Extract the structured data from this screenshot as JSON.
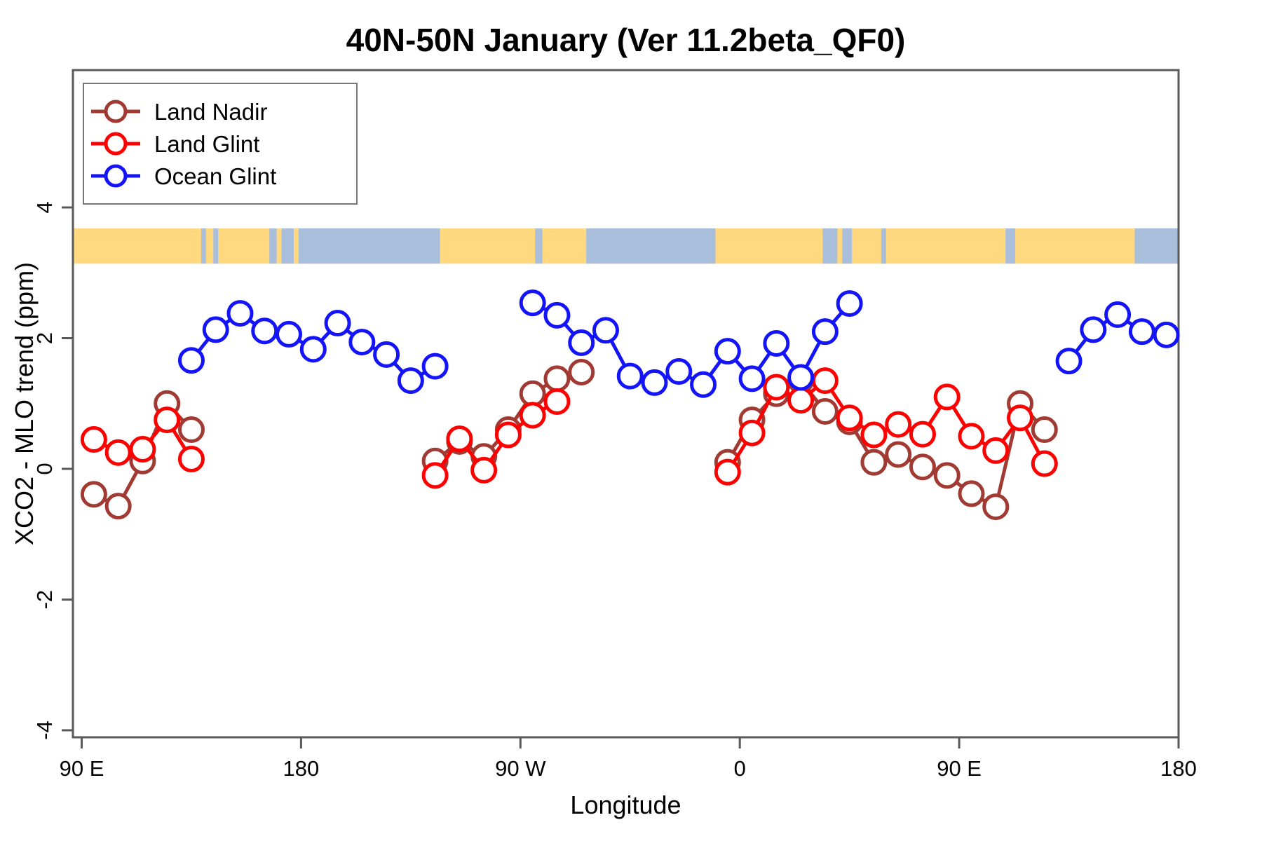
{
  "title": "40N-50N January (Ver 11.2beta_QF0)",
  "chart_data": {
    "type": "line",
    "title": "40N-50N January (Ver 11.2beta_QF0)",
    "xlabel": "Longitude",
    "ylabel": "XCO2 - MLO trend (ppm)",
    "legend_position": "top-left",
    "grid": false,
    "axis_color": "#5a5a5a",
    "text_color": "#000000",
    "xlim_wrapped_degrees": [
      86.5,
      540
    ],
    "ylim": [
      -4.1,
      6.1
    ],
    "x_ticks": [
      {
        "label": "90 E",
        "lon": 90
      },
      {
        "label": "180",
        "lon": 180
      },
      {
        "label": "90 W",
        "lon": 270
      },
      {
        "label": "0",
        "lon": 360
      },
      {
        "label": "90 E",
        "lon": 450
      },
      {
        "label": "180",
        "lon": 540
      }
    ],
    "y_ticks": [
      {
        "label": "-4",
        "value": -4
      },
      {
        "label": "-2",
        "value": -2
      },
      {
        "label": "0",
        "value": 0
      },
      {
        "label": "2",
        "value": 2
      },
      {
        "label": "4",
        "value": 4
      }
    ],
    "map_strip": {
      "description": "world coastline band 40N-50N drawn across top of plot",
      "value_top": 3.68,
      "value_bottom": 3.14,
      "land_color": "#FFD880",
      "ocean_color": "#A9BEDB",
      "ocean_segments_lon": [
        [
          139,
          141
        ],
        [
          144,
          146
        ],
        [
          167,
          170
        ],
        [
          172,
          237
        ],
        [
          276,
          279
        ],
        [
          297,
          350
        ],
        [
          394,
          400
        ],
        [
          402,
          406
        ],
        [
          418,
          420
        ],
        [
          469,
          473
        ],
        [
          522,
          540
        ]
      ],
      "land_speck_segments_lon": [
        [
          177,
          179
        ]
      ]
    },
    "series": [
      {
        "name": "Land Nadir",
        "color": "#A03A32",
        "segments": [
          [
            [
              95,
              -0.39
            ],
            [
              105,
              -0.57
            ],
            [
              115,
              0.12
            ],
            [
              125,
              1.0
            ],
            [
              135,
              0.6
            ]
          ],
          [
            [
              235,
              0.12
            ],
            [
              245,
              0.42
            ],
            [
              255,
              0.19
            ],
            [
              265,
              0.6
            ],
            [
              275,
              1.15
            ],
            [
              285,
              1.38
            ],
            [
              295,
              1.48
            ]
          ],
          [
            [
              355,
              0.1
            ],
            [
              365,
              0.75
            ],
            [
              375,
              1.15
            ],
            [
              385,
              1.35
            ],
            [
              395,
              0.88
            ],
            [
              405,
              0.72
            ],
            [
              415,
              0.1
            ],
            [
              425,
              0.22
            ],
            [
              435,
              0.03
            ],
            [
              445,
              -0.1
            ],
            [
              455,
              -0.38
            ],
            [
              465,
              -0.58
            ],
            [
              475,
              1.0
            ],
            [
              485,
              0.6
            ]
          ]
        ]
      },
      {
        "name": "Land Glint",
        "color": "#FF0000",
        "segments": [
          [
            [
              95,
              0.45
            ],
            [
              105,
              0.25
            ],
            [
              115,
              0.3
            ],
            [
              125,
              0.75
            ],
            [
              135,
              0.15
            ]
          ],
          [
            [
              235,
              -0.1
            ],
            [
              245,
              0.46
            ],
            [
              255,
              -0.02
            ],
            [
              265,
              0.52
            ],
            [
              275,
              0.82
            ],
            [
              285,
              1.03
            ]
          ],
          [
            [
              355,
              -0.05
            ],
            [
              365,
              0.55
            ],
            [
              375,
              1.25
            ],
            [
              385,
              1.05
            ],
            [
              395,
              1.35
            ],
            [
              405,
              0.78
            ],
            [
              415,
              0.52
            ],
            [
              425,
              0.68
            ],
            [
              435,
              0.53
            ],
            [
              445,
              1.1
            ],
            [
              455,
              0.5
            ],
            [
              465,
              0.28
            ],
            [
              475,
              0.78
            ],
            [
              485,
              0.08
            ]
          ]
        ]
      },
      {
        "name": "Ocean Glint",
        "color": "#1414FA",
        "segments": [
          [
            [
              135,
              1.66
            ],
            [
              145,
              2.13
            ],
            [
              155,
              2.38
            ],
            [
              165,
              2.11
            ],
            [
              175,
              2.06
            ],
            [
              185,
              1.83
            ],
            [
              195,
              2.23
            ],
            [
              205,
              1.94
            ],
            [
              215,
              1.75
            ],
            [
              225,
              1.35
            ],
            [
              235,
              1.57
            ]
          ],
          [
            [
              275,
              2.54
            ],
            [
              285,
              2.35
            ],
            [
              295,
              1.93
            ],
            [
              305,
              2.12
            ],
            [
              315,
              1.42
            ],
            [
              325,
              1.32
            ],
            [
              335,
              1.49
            ],
            [
              345,
              1.29
            ],
            [
              355,
              1.8
            ],
            [
              365,
              1.38
            ],
            [
              375,
              1.92
            ],
            [
              385,
              1.4
            ],
            [
              395,
              2.1
            ],
            [
              405,
              2.53
            ]
          ],
          [
            [
              495,
              1.65
            ],
            [
              505,
              2.13
            ],
            [
              515,
              2.36
            ],
            [
              525,
              2.1
            ],
            [
              535,
              2.05
            ]
          ]
        ]
      }
    ]
  }
}
